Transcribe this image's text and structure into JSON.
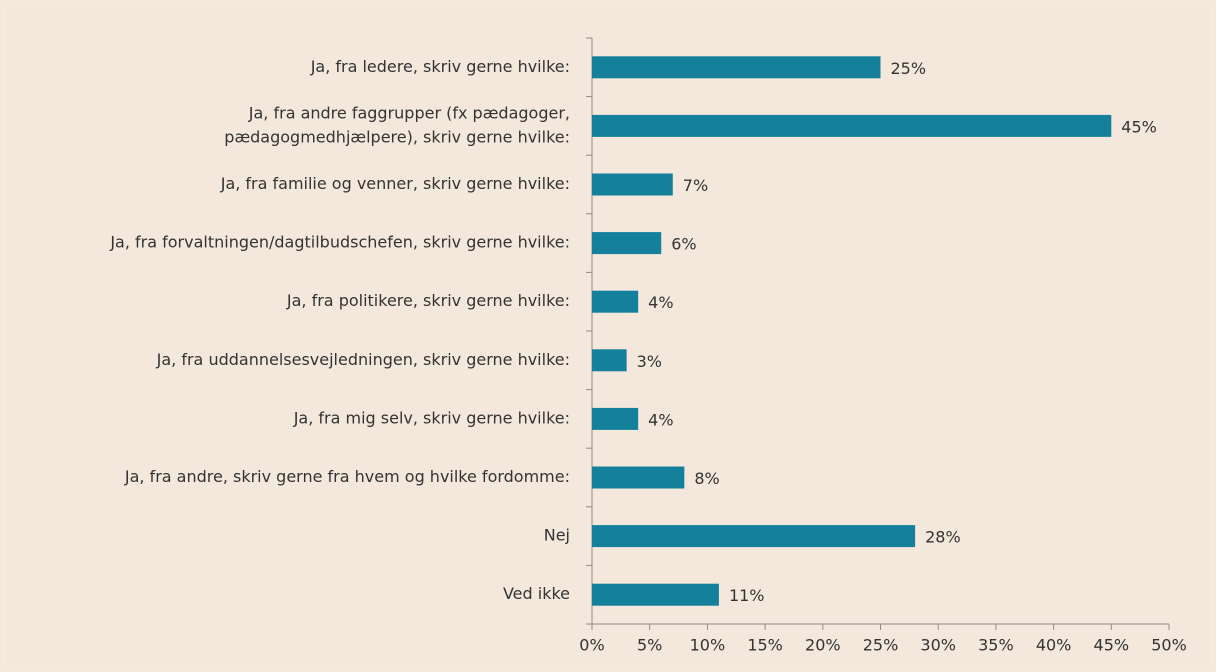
{
  "chart_data": {
    "type": "bar",
    "orientation": "horizontal",
    "categories": [
      "Ja, fra ledere, skriv gerne hvilke:",
      [
        "Ja, fra andre faggrupper (fx pædagoger,",
        "pædagogmedhjælpere), skriv gerne hvilke:"
      ],
      "Ja, fra familie og venner, skriv gerne hvilke:",
      "Ja, fra forvaltningen/dagtilbudschefen, skriv gerne hvilke:",
      "Ja, fra politikere, skriv gerne hvilke:",
      "Ja, fra uddannelsesvejledningen, skriv gerne hvilke:",
      "Ja, fra mig selv, skriv gerne hvilke:",
      "Ja, fra andre, skriv gerne fra hvem og hvilke fordomme:",
      "Nej",
      "Ved ikke"
    ],
    "values": [
      25,
      45,
      7,
      6,
      4,
      3,
      4,
      8,
      28,
      11
    ],
    "value_labels": [
      "25%",
      "45%",
      "7%",
      "6%",
      "4%",
      "3%",
      "4%",
      "8%",
      "28%",
      "11%"
    ],
    "color": "#14809c",
    "xlim": [
      0,
      50
    ],
    "xticks": [
      {
        "value": 0,
        "label": "0%"
      },
      {
        "value": 5,
        "label": "5%"
      },
      {
        "value": 10,
        "label": "10%"
      },
      {
        "value": 15,
        "label": "15%"
      },
      {
        "value": 20,
        "label": "20%"
      },
      {
        "value": 25,
        "label": "25%"
      },
      {
        "value": 30,
        "label": "30%"
      },
      {
        "value": 35,
        "label": "35%"
      },
      {
        "value": 40,
        "label": "40%"
      },
      {
        "value": 45,
        "label": "45%"
      },
      {
        "value": 50,
        "label": "50%"
      }
    ],
    "grid": false
  }
}
